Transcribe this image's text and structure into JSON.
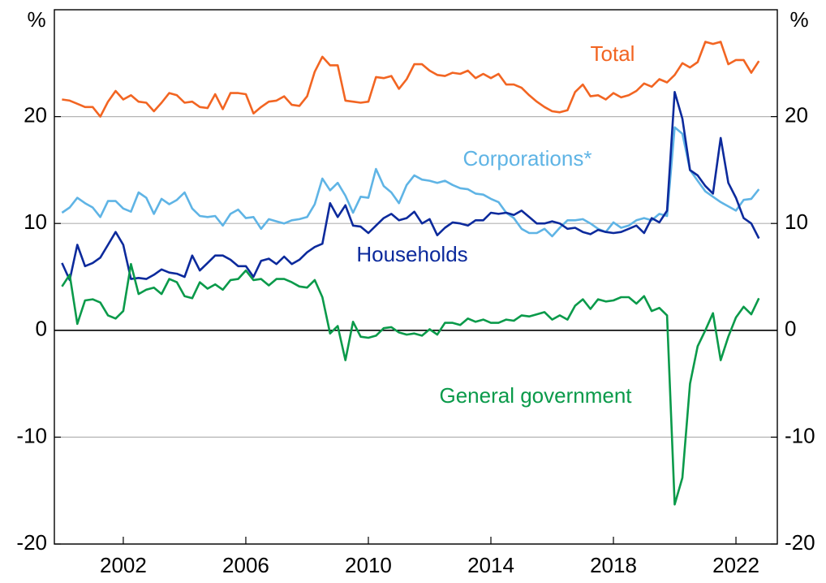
{
  "chart_data": {
    "type": "line",
    "y_unit": "%",
    "x": [
      2000,
      2000.25,
      2000.5,
      2000.75,
      2001,
      2001.25,
      2001.5,
      2001.75,
      2002,
      2002.25,
      2002.5,
      2002.75,
      2003,
      2003.25,
      2003.5,
      2003.75,
      2004,
      2004.25,
      2004.5,
      2004.75,
      2005,
      2005.25,
      2005.5,
      2005.75,
      2006,
      2006.25,
      2006.5,
      2006.75,
      2007,
      2007.25,
      2007.5,
      2007.75,
      2008,
      2008.25,
      2008.5,
      2008.75,
      2009,
      2009.25,
      2009.5,
      2009.75,
      2010,
      2010.25,
      2010.5,
      2010.75,
      2011,
      2011.25,
      2011.5,
      2011.75,
      2012,
      2012.25,
      2012.5,
      2012.75,
      2013,
      2013.25,
      2013.5,
      2013.75,
      2014,
      2014.25,
      2014.5,
      2014.75,
      2015,
      2015.25,
      2015.5,
      2015.75,
      2016,
      2016.25,
      2016.5,
      2016.75,
      2017,
      2017.25,
      2017.5,
      2017.75,
      2018,
      2018.25,
      2018.5,
      2018.75,
      2019,
      2019.25,
      2019.5,
      2019.75,
      2020,
      2020.25,
      2020.5,
      2020.75,
      2021,
      2021.25,
      2021.5,
      2021.75,
      2022,
      2022.25,
      2022.5,
      2022.75
    ],
    "series": [
      {
        "name": "Total",
        "color": "#f26522",
        "values": [
          21.6,
          21.5,
          21.2,
          20.9,
          20.9,
          20.0,
          21.4,
          22.4,
          21.6,
          22.0,
          21.4,
          21.3,
          20.5,
          21.3,
          22.2,
          22.0,
          21.3,
          21.4,
          20.9,
          20.8,
          22.1,
          20.7,
          22.2,
          22.2,
          22.1,
          20.3,
          20.9,
          21.4,
          21.5,
          21.9,
          21.1,
          21.0,
          21.9,
          24.2,
          25.6,
          24.8,
          24.8,
          21.5,
          21.4,
          21.3,
          21.4,
          23.7,
          23.6,
          23.8,
          22.6,
          23.5,
          24.9,
          24.9,
          24.3,
          23.9,
          23.8,
          24.1,
          24.0,
          24.3,
          23.6,
          24.0,
          23.6,
          24.0,
          23.0,
          23.0,
          22.7,
          22.0,
          21.4,
          20.9,
          20.5,
          20.4,
          20.6,
          22.3,
          23.0,
          21.9,
          22.0,
          21.6,
          22.2,
          21.8,
          22.0,
          22.4,
          23.1,
          22.8,
          23.5,
          23.2,
          23.9,
          25.0,
          24.6,
          25.1,
          27.0,
          26.8,
          27.0,
          24.9,
          25.3,
          25.3,
          24.1,
          25.2
        ]
      },
      {
        "name": "Corporations*",
        "color": "#5fb4e5",
        "values": [
          11.0,
          11.5,
          12.4,
          11.9,
          11.5,
          10.6,
          12.1,
          12.1,
          11.4,
          11.1,
          12.9,
          12.4,
          10.9,
          12.3,
          11.8,
          12.2,
          12.9,
          11.4,
          10.7,
          10.6,
          10.7,
          9.8,
          10.9,
          11.3,
          10.5,
          10.6,
          9.5,
          10.4,
          10.2,
          10.0,
          10.3,
          10.4,
          10.6,
          11.8,
          14.2,
          13.1,
          13.8,
          12.6,
          11.0,
          12.5,
          12.4,
          15.1,
          13.5,
          12.9,
          11.9,
          13.6,
          14.5,
          14.1,
          14.0,
          13.8,
          14.0,
          13.6,
          13.3,
          13.2,
          12.8,
          12.7,
          12.3,
          12.0,
          11.0,
          10.5,
          9.5,
          9.1,
          9.1,
          9.5,
          8.8,
          9.6,
          10.3,
          10.3,
          10.4,
          10.0,
          9.5,
          9.2,
          10.1,
          9.6,
          9.8,
          10.3,
          10.5,
          10.3,
          10.9,
          10.7,
          19.0,
          18.4,
          15.0,
          14.0,
          13.0,
          12.5,
          12.0,
          11.6,
          11.2,
          12.2,
          12.3,
          13.2
        ]
      },
      {
        "name": "Households",
        "color": "#0c2a9c",
        "values": [
          6.3,
          4.7,
          8.0,
          6.0,
          6.3,
          6.8,
          8.0,
          9.2,
          8.0,
          4.8,
          4.9,
          4.8,
          5.2,
          5.7,
          5.4,
          5.3,
          5.0,
          7.0,
          5.6,
          6.3,
          7.0,
          7.0,
          6.6,
          6.0,
          6.0,
          5.0,
          6.5,
          6.7,
          6.2,
          6.9,
          6.2,
          6.6,
          7.3,
          7.8,
          8.1,
          11.9,
          10.6,
          11.7,
          9.8,
          9.7,
          9.1,
          9.8,
          10.5,
          10.9,
          10.3,
          10.5,
          11.1,
          10.0,
          10.4,
          8.9,
          9.6,
          10.1,
          10.0,
          9.8,
          10.3,
          10.3,
          11.0,
          10.9,
          11.0,
          10.8,
          11.2,
          10.6,
          10.0,
          10.0,
          10.2,
          10.0,
          9.5,
          9.6,
          9.2,
          9.0,
          9.4,
          9.2,
          9.1,
          9.2,
          9.5,
          9.8,
          9.1,
          10.5,
          10.1,
          11.2,
          22.3,
          19.8,
          15.0,
          14.5,
          13.5,
          12.8,
          18.0,
          13.8,
          12.4,
          10.5,
          10.0,
          8.6
        ]
      },
      {
        "name": "General government",
        "color": "#0a9a4a",
        "values": [
          4.1,
          5.2,
          0.6,
          2.8,
          2.9,
          2.6,
          1.4,
          1.1,
          1.8,
          6.2,
          3.4,
          3.8,
          4.0,
          3.4,
          4.8,
          4.5,
          3.2,
          3.0,
          4.5,
          3.9,
          4.3,
          3.8,
          4.7,
          4.8,
          5.6,
          4.7,
          4.8,
          4.2,
          4.8,
          4.8,
          4.5,
          4.1,
          4.0,
          4.7,
          3.1,
          -0.3,
          0.4,
          -2.8,
          0.8,
          -0.6,
          -0.7,
          -0.5,
          0.2,
          0.3,
          -0.2,
          -0.4,
          -0.3,
          -0.5,
          0.1,
          -0.4,
          0.7,
          0.7,
          0.5,
          1.1,
          0.8,
          1.0,
          0.7,
          0.7,
          1.0,
          0.9,
          1.4,
          1.3,
          1.5,
          1.7,
          1.0,
          1.4,
          1.0,
          2.3,
          2.9,
          2.0,
          2.9,
          2.7,
          2.8,
          3.1,
          3.1,
          2.5,
          3.2,
          1.8,
          2.1,
          1.4,
          -16.3,
          -13.8,
          -5.0,
          -1.5,
          0.0,
          1.6,
          -2.8,
          -0.6,
          1.2,
          2.2,
          1.5,
          3.0
        ]
      }
    ],
    "xlim": [
      1999.75,
      2023.35
    ],
    "xticks": [
      2002,
      2006,
      2010,
      2014,
      2018,
      2022
    ],
    "ylim": [
      -20,
      30
    ],
    "yticks": [
      -20,
      -10,
      0,
      10,
      20
    ],
    "y2lim": [
      -20,
      30
    ],
    "y2ticks": [
      -20,
      -10,
      0,
      10,
      20
    ],
    "grid": true
  }
}
